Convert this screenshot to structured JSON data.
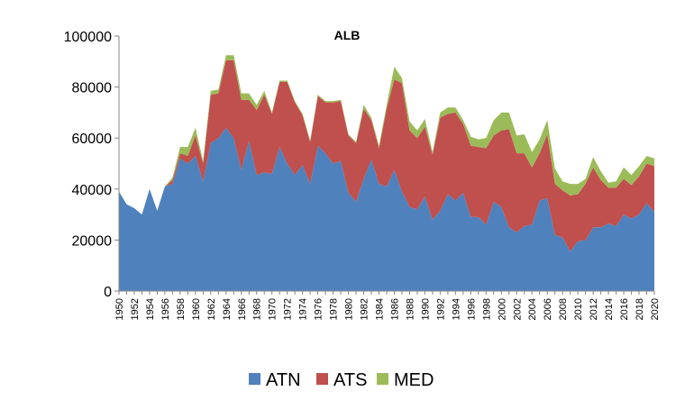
{
  "chart_data": {
    "type": "area",
    "stacked": true,
    "title": "ALB",
    "xlabel": "",
    "ylabel": "",
    "ylim": [
      0,
      100000
    ],
    "yticks": [
      0,
      20000,
      40000,
      60000,
      80000,
      100000
    ],
    "ytick_labels": [
      "0",
      "20000",
      "40000",
      "60000",
      "80000",
      "100000"
    ],
    "xticks": [
      "1950",
      "1952",
      "1954",
      "1956",
      "1958",
      "1960",
      "1962",
      "1964",
      "1966",
      "1968",
      "1970",
      "1972",
      "1974",
      "1976",
      "1978",
      "1980",
      "1982",
      "1984",
      "1986",
      "1988",
      "1990",
      "1992",
      "1994",
      "1996",
      "1998",
      "2000",
      "2002",
      "2004",
      "2006",
      "2008",
      "2010",
      "2012",
      "2014",
      "2016",
      "2018",
      "2020"
    ],
    "x": [
      1950,
      1951,
      1952,
      1953,
      1954,
      1955,
      1956,
      1957,
      1958,
      1959,
      1960,
      1961,
      1962,
      1963,
      1964,
      1965,
      1966,
      1967,
      1968,
      1969,
      1970,
      1971,
      1972,
      1973,
      1974,
      1975,
      1976,
      1977,
      1978,
      1979,
      1980,
      1981,
      1982,
      1983,
      1984,
      1985,
      1986,
      1987,
      1988,
      1989,
      1990,
      1991,
      1992,
      1993,
      1994,
      1995,
      1996,
      1997,
      1998,
      1999,
      2000,
      2001,
      2002,
      2003,
      2004,
      2005,
      2006,
      2007,
      2008,
      2009,
      2010,
      2011,
      2012,
      2013,
      2014,
      2015,
      2016,
      2017,
      2018,
      2019,
      2020
    ],
    "grid": false,
    "legend_position": "bottom",
    "series": [
      {
        "name": "ATN",
        "color": "#4F81BD",
        "values": [
          39000,
          34000,
          32500,
          30000,
          40000,
          31500,
          41000,
          42000,
          52000,
          50000,
          53000,
          43000,
          58000,
          60000,
          64000,
          60000,
          47500,
          59000,
          45500,
          46500,
          46000,
          56500,
          50000,
          45500,
          49500,
          42000,
          57000,
          54000,
          50000,
          51000,
          38500,
          35000,
          44000,
          51500,
          42000,
          41000,
          47500,
          39000,
          33000,
          32000,
          37000,
          28000,
          31500,
          38000,
          35500,
          38500,
          29000,
          29000,
          26000,
          35000,
          33000,
          25000,
          23000,
          25500,
          26000,
          35500,
          36500,
          22000,
          21000,
          15500,
          19500,
          20000,
          25000,
          25000,
          26500,
          25500,
          30000,
          28500,
          30000,
          34500,
          31000
        ]
      },
      {
        "name": "ATS",
        "color": "#C0504D",
        "values": [
          0,
          0,
          0,
          0,
          0,
          0,
          0,
          1500,
          2000,
          3000,
          8000,
          7000,
          19000,
          17500,
          26500,
          30500,
          27500,
          16000,
          25500,
          30500,
          23500,
          25500,
          32000,
          28500,
          19500,
          16500,
          19500,
          20000,
          24000,
          23500,
          22500,
          23000,
          27500,
          15500,
          14000,
          30500,
          35500,
          42500,
          30000,
          28000,
          27500,
          25500,
          36500,
          31500,
          34500,
          27000,
          28000,
          27500,
          30000,
          26000,
          30000,
          38500,
          31000,
          28500,
          22500,
          18500,
          25000,
          20000,
          18500,
          22000,
          18500,
          22000,
          23500,
          18500,
          14000,
          15000,
          14000,
          13000,
          15000,
          15500,
          18000
        ]
      },
      {
        "name": "MED",
        "color": "#9BBB59",
        "values": [
          0,
          0,
          0,
          0,
          0,
          0,
          0,
          1000,
          2500,
          3500,
          3000,
          1000,
          1500,
          1500,
          2000,
          2000,
          2500,
          2500,
          2000,
          1500,
          500,
          500,
          500,
          500,
          500,
          500,
          500,
          500,
          500,
          500,
          500,
          500,
          1500,
          1000,
          1000,
          1500,
          5000,
          2000,
          3500,
          3000,
          3000,
          1000,
          2000,
          2500,
          2000,
          1500,
          3500,
          3000,
          4000,
          6000,
          7000,
          6500,
          7000,
          7500,
          6000,
          5500,
          5500,
          6000,
          3500,
          4500,
          4000,
          2000,
          4000,
          3500,
          2000,
          2500,
          4500,
          4000,
          4000,
          3000,
          3000
        ]
      }
    ]
  }
}
